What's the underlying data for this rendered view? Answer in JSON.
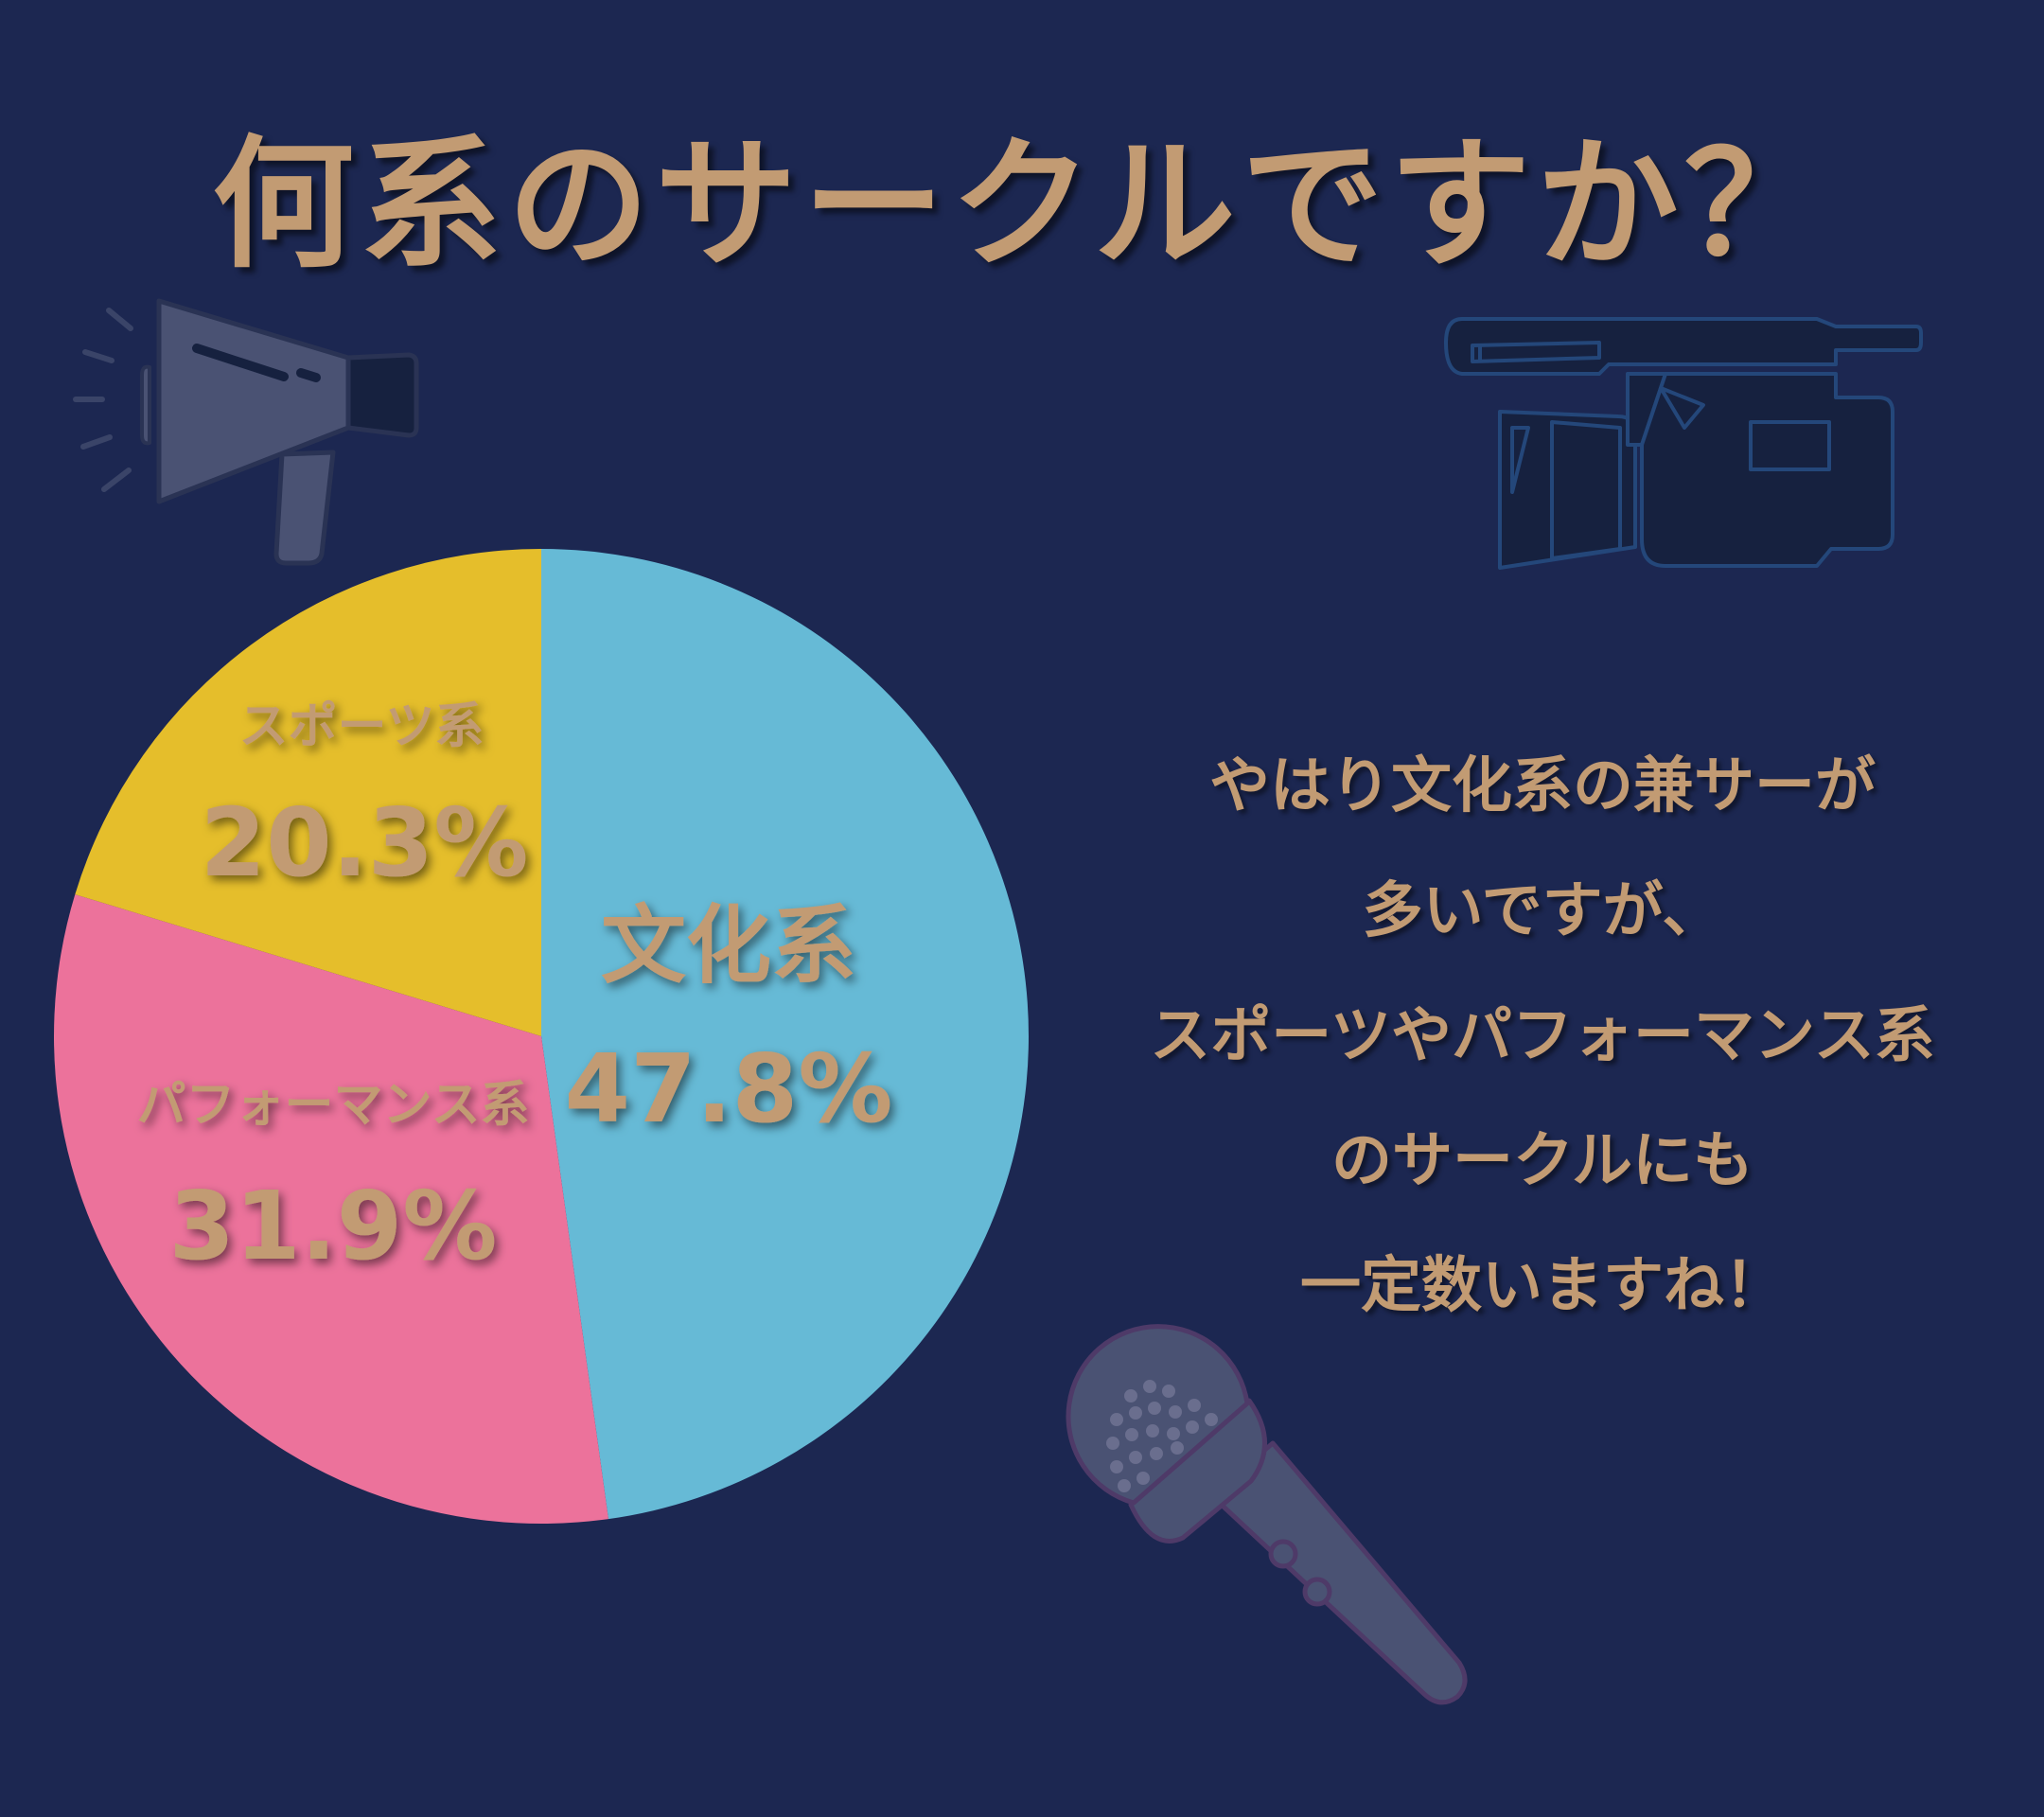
{
  "title": "何系のサークルですか？",
  "chart_data": {
    "type": "pie",
    "title": "何系のサークルですか？",
    "slices": [
      {
        "label": "文化系",
        "value": 47.8,
        "value_label": "47.8%",
        "color": "#66bad6"
      },
      {
        "label": "パフォーマンス系",
        "value": 31.9,
        "value_label": "31.9%",
        "color": "#ec729b"
      },
      {
        "label": "スポーツ系",
        "value": 20.3,
        "value_label": "20.3%",
        "color": "#e5be2b"
      }
    ],
    "start": "12 o'clock, clockwise"
  },
  "message": {
    "lines": [
      "やはり文化系の兼サーが",
      "多いですが、",
      "スポーツやパフォーマンス系",
      "のサークルにも",
      "一定数いますね！"
    ]
  },
  "icons": [
    "megaphone-icon",
    "video-camera-icon",
    "microphone-icon"
  ],
  "colors": {
    "background": "#1c2751",
    "text": "#c29b73",
    "icon_fill": "#4a5273",
    "icon_dark": "#16213f",
    "icon_stroke_blue": "#24477a",
    "icon_stroke_purple": "#4e3a68"
  }
}
